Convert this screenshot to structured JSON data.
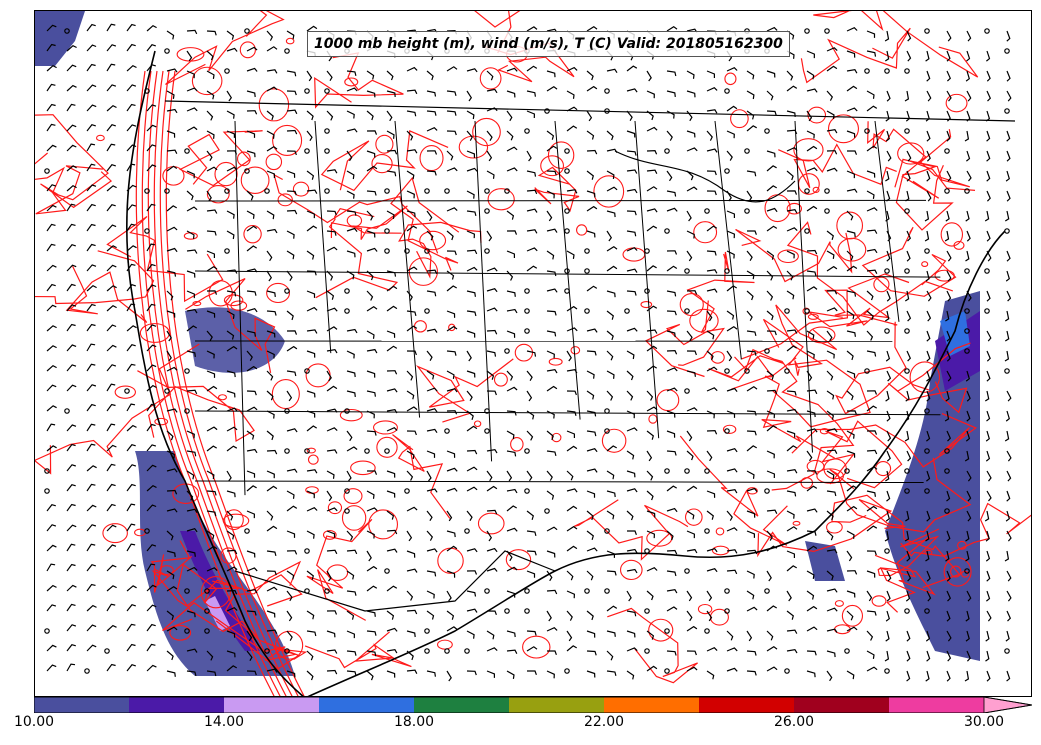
{
  "title": "1000 mb height (m), wind (m/s), T (C) Valid: 201805162300",
  "colorbar": {
    "colors": [
      "#4a4f9e",
      "#4b1aa8",
      "#c99af2",
      "#2f6fe0",
      "#1e8040",
      "#98a010",
      "#ff6e00",
      "#d20000",
      "#a0001e",
      "#ee3ca0",
      "#ffa0d0"
    ],
    "tick_labels": [
      "10.00",
      "14.00",
      "18.00",
      "22.00",
      "26.00",
      "30.00"
    ]
  }
}
